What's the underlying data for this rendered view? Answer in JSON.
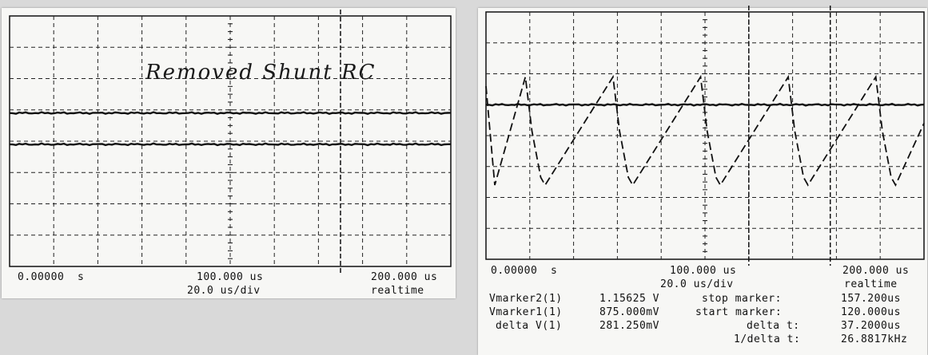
{
  "left_panel": {
    "annotation": "Removed Shunt RC",
    "time_start": "0.00000  s",
    "time_center": "100.000 us",
    "time_end": "200.000 us",
    "timebase": "20.0 us/div",
    "mode": "realtime"
  },
  "right_panel": {
    "time_start": "0.00000  s",
    "time_center": "100.000 us",
    "time_end": "200.000 us",
    "timebase": "20.0 us/div",
    "mode": "realtime",
    "readouts": [
      {
        "label": "Vmarker2(1)",
        "value": "1.15625 V",
        "label2": "stop marker:",
        "value2": "157.200us"
      },
      {
        "label": "Vmarker1(1)",
        "value": "875.000mV",
        "label2": "start marker:",
        "value2": "120.000us"
      },
      {
        "label": "delta V(1)",
        "value": "281.250mV",
        "label2": "delta t:",
        "value2": "37.2000us"
      },
      {
        "label": "",
        "value": "",
        "label2": "1/delta t:",
        "value2": "26.8817kHz"
      }
    ]
  },
  "chart_data": [
    {
      "type": "line",
      "x_range_us": [
        0,
        200
      ],
      "divisions_x": 10,
      "divisions_y": 8,
      "grid": true,
      "marker_times_us": [
        150
      ],
      "series": [
        {
          "style": "solid",
          "shape": "flat",
          "level_div": 3.1
        },
        {
          "style": "solid",
          "shape": "flat",
          "level_div": 4.1
        }
      ]
    },
    {
      "type": "line",
      "x_range_us": [
        0,
        200
      ],
      "divisions_x": 10,
      "divisions_y": 8,
      "grid": true,
      "marker_times_us": [
        120,
        157.2
      ],
      "series": [
        {
          "style": "solid",
          "shape": "flat",
          "level_div": 3.0
        },
        {
          "style": "dashed",
          "shape": "sawtooth",
          "period_us": 40,
          "peak_div": 2.1,
          "trough_div": 5.6,
          "peak_times_us": [
            18,
            58,
            98,
            138,
            178
          ]
        }
      ]
    }
  ]
}
